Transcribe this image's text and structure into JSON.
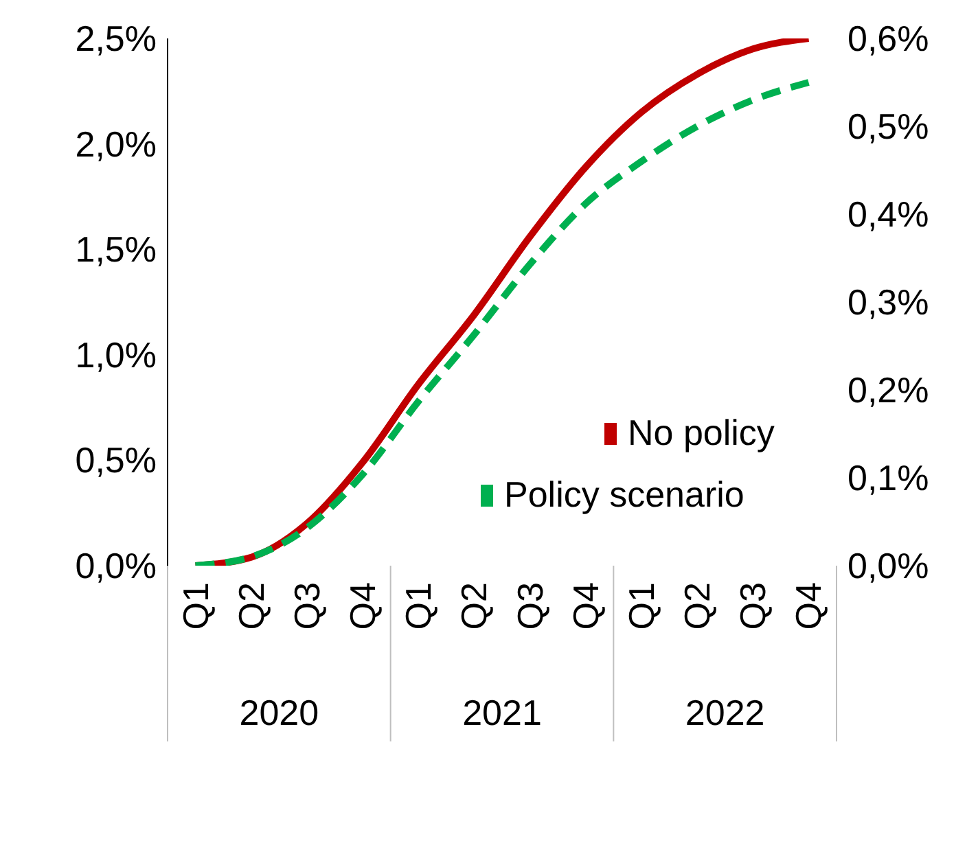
{
  "chart_data": {
    "type": "line",
    "categories": [
      "Q1",
      "Q2",
      "Q3",
      "Q4",
      "Q1",
      "Q2",
      "Q3",
      "Q4",
      "Q1",
      "Q2",
      "Q3",
      "Q4"
    ],
    "annotations": [
      "2020",
      "2021",
      "2022"
    ],
    "series": [
      {
        "name": "No policy",
        "color": "#c00000",
        "line_style": "solid",
        "values": [
          0.0,
          0.04,
          0.2,
          0.49,
          0.86,
          1.19,
          1.56,
          1.89,
          2.15,
          2.33,
          2.45,
          2.5
        ]
      },
      {
        "name": "Policy scenario",
        "color": "#00b050",
        "line_style": "dashed",
        "axis": "y2",
        "values": [
          0.0,
          0.01,
          0.043,
          0.104,
          0.187,
          0.263,
          0.343,
          0.412,
          0.46,
          0.5,
          0.53,
          0.55
        ]
      }
    ],
    "ylim": [
      0,
      2.5
    ],
    "yticks": [
      {
        "value": 0,
        "label": "0,0%"
      },
      {
        "value": 0.5,
        "label": "0,5%"
      },
      {
        "value": 1,
        "label": "1,0%"
      },
      {
        "value": 1.5,
        "label": "1,5%"
      },
      {
        "value": 2,
        "label": "2,0%"
      },
      {
        "value": 2.5,
        "label": "2,5%"
      }
    ],
    "y2lim": [
      0,
      0.6
    ],
    "y2ticks": [
      {
        "value": 0,
        "label": "0,0%"
      },
      {
        "value": 0.1,
        "label": "0,1%"
      },
      {
        "value": 0.2,
        "label": "0,2%"
      },
      {
        "value": 0.3,
        "label": "0,3%"
      },
      {
        "value": 0.4,
        "label": "0,4%"
      },
      {
        "value": 0.5,
        "label": "0,5%"
      },
      {
        "value": 0.6,
        "label": "0,6%"
      }
    ],
    "grid": false,
    "legend": "right",
    "marker": "none"
  }
}
